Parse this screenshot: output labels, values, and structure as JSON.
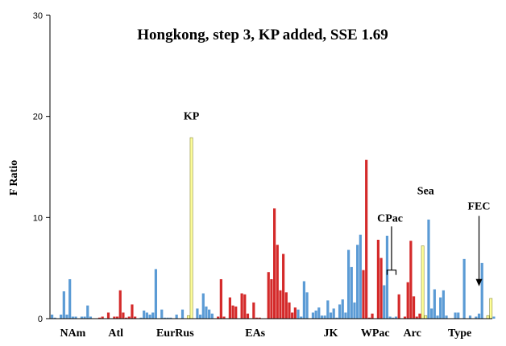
{
  "chart_data": {
    "type": "bar",
    "title": "Hongkong, step 3, KP added, SSE 1.69",
    "ylabel": "F Ratio",
    "xlabel": "",
    "ylim": [
      0,
      30
    ],
    "yticks": [
      0,
      10,
      20,
      30
    ],
    "grid": false,
    "colors": {
      "blue": "#5b9bd5",
      "red": "#d42a2a",
      "yellow": "#ffff99"
    },
    "values": [
      0.4,
      0.1,
      0.0,
      0.4,
      2.7,
      0.4,
      3.9,
      0.2,
      0.2,
      0.0,
      0.2,
      0.2,
      1.3,
      0.2,
      0.0,
      0.0,
      0.1,
      0.2,
      0.0,
      0.6,
      0.0,
      0.2,
      0.2,
      2.8,
      0.6,
      0.1,
      0.2,
      1.4,
      0.2,
      0.0,
      0.1,
      0.8,
      0.6,
      0.4,
      0.6,
      4.9,
      0.0,
      0.9,
      0.1,
      0.1,
      0.1,
      0.0,
      0.4,
      0.0,
      0.9,
      0.0,
      0.3,
      17.9,
      0.0,
      1.0,
      0.4,
      2.5,
      1.2,
      0.9,
      0.5,
      0.0,
      0.2,
      3.9,
      0.2,
      0.0,
      2.1,
      1.3,
      1.2,
      0.0,
      2.5,
      2.4,
      0.5,
      0.0,
      1.6,
      0.1,
      0.1,
      0.0,
      0.0,
      4.6,
      3.9,
      10.9,
      7.3,
      2.8,
      6.4,
      2.6,
      1.6,
      0.6,
      1.1,
      0.9,
      0.2,
      3.7,
      2.6,
      0.0,
      0.6,
      0.8,
      1.1,
      0.3,
      0.3,
      1.8,
      0.6,
      1.0,
      0.1,
      1.4,
      1.9,
      0.6,
      6.8,
      5.1,
      1.6,
      7.3,
      8.3,
      4.8,
      15.7,
      0.1,
      0.5,
      0.0,
      7.8,
      6.0,
      3.3,
      8.2,
      0.2,
      0.1,
      0.2,
      2.4,
      0.0,
      0.2,
      3.6,
      7.7,
      2.2,
      0.2,
      0.5,
      7.2,
      0.3,
      9.8,
      1.0,
      2.9,
      0.3,
      2.1,
      2.8,
      0.3,
      0.0,
      0.0,
      0.6,
      0.6,
      0.0,
      5.9,
      0.0,
      0.3,
      0.0,
      0.2,
      0.5,
      5.5,
      0.0,
      0.3,
      2.0,
      0.2
    ],
    "bar_colors": [
      "blue",
      "blue",
      "blue",
      "blue",
      "blue",
      "blue",
      "blue",
      "blue",
      "blue",
      "blue",
      "blue",
      "blue",
      "blue",
      "blue",
      "blue",
      "red",
      "red",
      "red",
      "red",
      "red",
      "red",
      "red",
      "red",
      "red",
      "red",
      "red",
      "red",
      "red",
      "red",
      "blue",
      "blue",
      "blue",
      "blue",
      "blue",
      "blue",
      "blue",
      "blue",
      "blue",
      "blue",
      "blue",
      "blue",
      "blue",
      "blue",
      "blue",
      "blue",
      "blue",
      "yellow",
      "yellow",
      "blue",
      "blue",
      "blue",
      "blue",
      "blue",
      "blue",
      "blue",
      "red",
      "red",
      "red",
      "red",
      "red",
      "red",
      "red",
      "red",
      "red",
      "red",
      "red",
      "red",
      "red",
      "red",
      "red",
      "red",
      "red",
      "red",
      "red",
      "red",
      "red",
      "red",
      "red",
      "red",
      "red",
      "red",
      "red",
      "red",
      "blue",
      "blue",
      "blue",
      "blue",
      "blue",
      "blue",
      "blue",
      "blue",
      "blue",
      "blue",
      "blue",
      "blue",
      "blue",
      "blue",
      "blue",
      "blue",
      "blue",
      "blue",
      "blue",
      "blue",
      "blue",
      "blue",
      "red",
      "red",
      "red",
      "red",
      "red",
      "red",
      "red",
      "blue",
      "blue",
      "blue",
      "blue",
      "blue",
      "red",
      "red",
      "red",
      "red",
      "red",
      "red",
      "red",
      "red",
      "yellow",
      "yellow",
      "blue",
      "blue",
      "blue",
      "blue",
      "blue",
      "blue",
      "blue",
      "blue",
      "blue",
      "blue",
      "blue",
      "blue",
      "blue",
      "blue",
      "blue",
      "blue",
      "blue",
      "blue",
      "blue",
      "blue",
      "yellow",
      "yellow"
    ],
    "group_labels": [
      {
        "label": "NAm",
        "from_bar": 0,
        "to_bar": 14
      },
      {
        "label": "Atl",
        "from_bar": 15,
        "to_bar": 28
      },
      {
        "label": "EurRus",
        "from_bar": 29,
        "to_bar": 54
      },
      {
        "label": "EAs",
        "from_bar": 55,
        "to_bar": 82
      },
      {
        "label": "JK",
        "from_bar": 83,
        "to_bar": 105
      },
      {
        "label": "WPac",
        "from_bar": 106,
        "to_bar": 112
      },
      {
        "label": "Arc",
        "from_bar": 118,
        "to_bar": 125
      },
      {
        "label": "Type",
        "from_bar": 128,
        "to_bar": 147
      }
    ],
    "annotations": [
      {
        "label": "KP",
        "bar": 47,
        "y": 19.7
      },
      {
        "label": "Sea",
        "bar": 126,
        "y": 12.3
      },
      {
        "label": "CPac",
        "bar": 114,
        "y": 9.6,
        "bracket": [
          113,
          116
        ],
        "bracket_y": 4.8
      },
      {
        "label": "FEC",
        "bar": 144,
        "y": 10.8,
        "arrow_to": 3.2
      }
    ]
  }
}
